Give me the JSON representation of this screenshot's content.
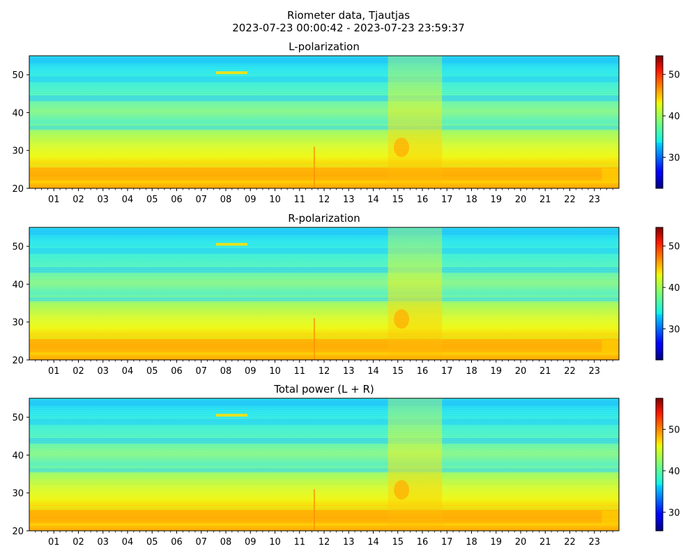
{
  "figure": {
    "title_line1": "Riometer data, Tjautjas",
    "title_line2": "2023-07-23 00:00:42 - 2023-07-23 23:59:37"
  },
  "chart_data": [
    {
      "type": "heatmap",
      "title": "L-polarization",
      "xlabel": "",
      "ylabel": "",
      "x_ticks": [
        "01",
        "02",
        "03",
        "04",
        "05",
        "06",
        "07",
        "08",
        "09",
        "10",
        "11",
        "12",
        "13",
        "14",
        "15",
        "16",
        "17",
        "18",
        "19",
        "20",
        "21",
        "22",
        "23"
      ],
      "x_range_hours": [
        0,
        24
      ],
      "y_ticks": [
        20,
        30,
        40,
        50
      ],
      "ylim": [
        20,
        55
      ],
      "colorbar_ticks": [
        30,
        40,
        50
      ],
      "colorbar_range": [
        22.5,
        54.5
      ],
      "colormap": "jet"
    },
    {
      "type": "heatmap",
      "title": "R-polarization",
      "xlabel": "",
      "ylabel": "",
      "x_ticks": [
        "01",
        "02",
        "03",
        "04",
        "05",
        "06",
        "07",
        "08",
        "09",
        "10",
        "11",
        "12",
        "13",
        "14",
        "15",
        "16",
        "17",
        "18",
        "19",
        "20",
        "21",
        "22",
        "23"
      ],
      "x_range_hours": [
        0,
        24
      ],
      "y_ticks": [
        20,
        30,
        40,
        50
      ],
      "ylim": [
        20,
        55
      ],
      "colorbar_ticks": [
        30,
        40,
        50
      ],
      "colorbar_range": [
        22.5,
        54.5
      ],
      "colormap": "jet"
    },
    {
      "type": "heatmap",
      "title": "Total power (L + R)",
      "xlabel": "",
      "ylabel": "",
      "x_ticks": [
        "01",
        "02",
        "03",
        "04",
        "05",
        "06",
        "07",
        "08",
        "09",
        "10",
        "11",
        "12",
        "13",
        "14",
        "15",
        "16",
        "17",
        "18",
        "19",
        "20",
        "21",
        "22",
        "23"
      ],
      "x_range_hours": [
        0,
        24
      ],
      "y_ticks": [
        20,
        30,
        40,
        50
      ],
      "ylim": [
        20,
        55
      ],
      "colorbar_ticks": [
        30,
        40,
        50
      ],
      "colorbar_range": [
        25.5,
        57.5
      ],
      "colormap": "jet"
    }
  ]
}
